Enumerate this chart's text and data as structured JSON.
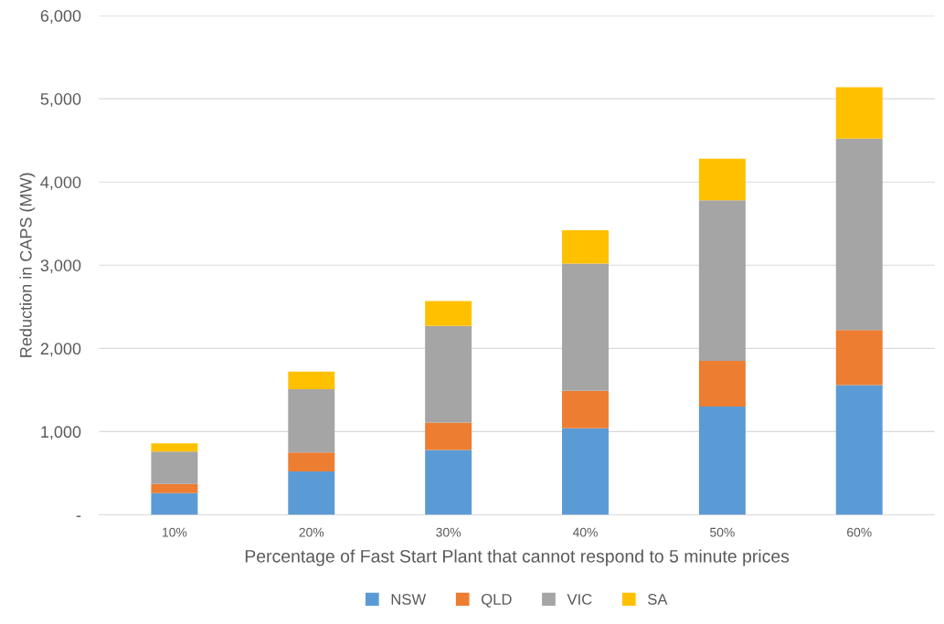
{
  "chart_data": {
    "type": "bar",
    "stacked": true,
    "xlabel": "Percentage of Fast Start Plant that cannot respond to 5 minute prices",
    "ylabel": "Reduction in CAPS (MW)",
    "categories": [
      "10%",
      "20%",
      "30%",
      "40%",
      "50%",
      "60%"
    ],
    "series": [
      {
        "name": "NSW",
        "color": "#5b9bd5",
        "values": [
          260,
          520,
          780,
          1040,
          1300,
          1560
        ]
      },
      {
        "name": "QLD",
        "color": "#ed7d31",
        "values": [
          110,
          230,
          330,
          450,
          550,
          660
        ]
      },
      {
        "name": "VIC",
        "color": "#a5a5a5",
        "values": [
          390,
          760,
          1160,
          1530,
          1930,
          2300
        ]
      },
      {
        "name": "SA",
        "color": "#ffc000",
        "values": [
          100,
          210,
          300,
          400,
          500,
          620
        ]
      }
    ],
    "ylim": [
      0,
      6000
    ],
    "yticks": [
      {
        "value": 0,
        "label": "-"
      },
      {
        "value": 1000,
        "label": "1,000"
      },
      {
        "value": 2000,
        "label": "2,000"
      },
      {
        "value": 3000,
        "label": "3,000"
      },
      {
        "value": 4000,
        "label": "4,000"
      },
      {
        "value": 5000,
        "label": "5,000"
      },
      {
        "value": 6000,
        "label": "6,000"
      }
    ],
    "grid": "y",
    "legend": "bottom"
  }
}
